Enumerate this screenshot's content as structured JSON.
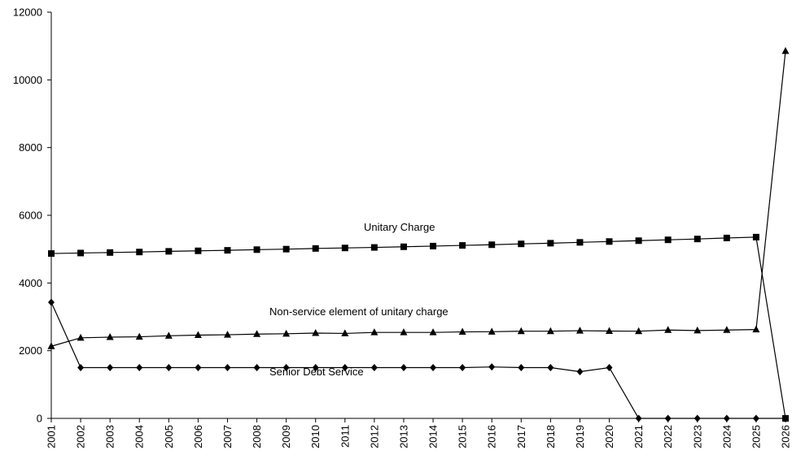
{
  "chart_data": {
    "type": "line",
    "title": "",
    "xlabel": "",
    "ylabel": "",
    "ylim": [
      0,
      12000
    ],
    "yticks": [
      0,
      2000,
      4000,
      6000,
      8000,
      10000,
      12000
    ],
    "grid": false,
    "legend": "none",
    "categories": [
      "2001",
      "2002",
      "2003",
      "2004",
      "2005",
      "2006",
      "2007",
      "2008",
      "2009",
      "2010",
      "2011",
      "2012",
      "2013",
      "2014",
      "2015",
      "2016",
      "2017",
      "2018",
      "2019",
      "2020",
      "2021",
      "2022",
      "2023",
      "2024",
      "2025",
      "2026"
    ],
    "series": [
      {
        "name": "Unitary Charge",
        "marker": "square",
        "values": [
          4870,
          4885,
          4900,
          4915,
          4935,
          4950,
          4965,
          4985,
          5000,
          5020,
          5035,
          5050,
          5070,
          5090,
          5110,
          5130,
          5155,
          5175,
          5200,
          5225,
          5250,
          5275,
          5300,
          5330,
          5355,
          0
        ]
      },
      {
        "name": "Non-service element of unitary charge",
        "marker": "triangle",
        "values": [
          2130,
          2380,
          2400,
          2410,
          2440,
          2460,
          2470,
          2490,
          2500,
          2520,
          2510,
          2540,
          2540,
          2540,
          2555,
          2560,
          2575,
          2575,
          2590,
          2580,
          2575,
          2610,
          2595,
          2610,
          2625,
          10850
        ]
      },
      {
        "name": "Senior Debt Service",
        "marker": "diamond",
        "values": [
          3430,
          1500,
          1500,
          1500,
          1500,
          1500,
          1500,
          1500,
          1500,
          1500,
          1500,
          1500,
          1500,
          1500,
          1500,
          1520,
          1500,
          1500,
          1380,
          1500,
          0,
          0,
          0,
          0,
          0,
          0
        ]
      }
    ],
    "annotations": [
      "Unitary Charge",
      "Non-service element of unitary charge",
      "Senior Debt Service"
    ]
  }
}
